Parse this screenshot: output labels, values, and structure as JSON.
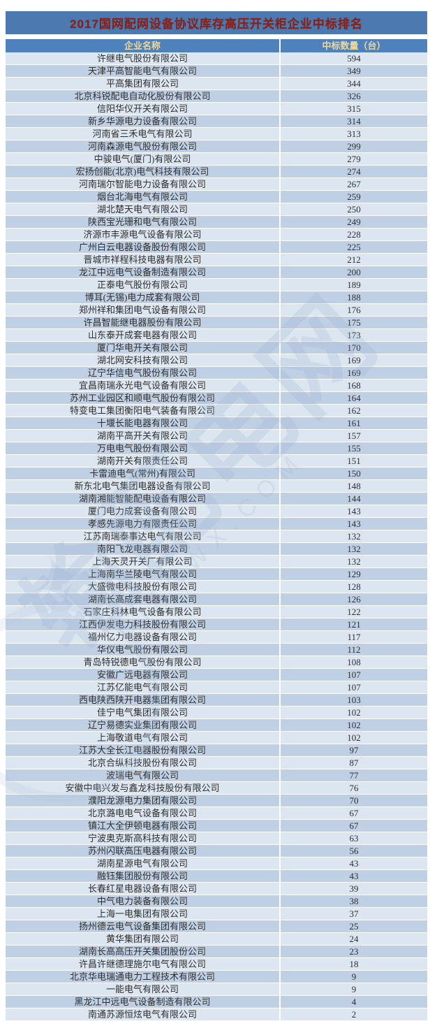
{
  "title": "2017国网配网设备协议库存高压开关柜企业中标排名",
  "colors": {
    "title_bg": "#4b79b0",
    "title_text": "#8e1f14",
    "header_bg": "#4f81bd",
    "header_text": "#eeda96",
    "row_light": "#dce6f1",
    "row_dark": "#bfd0e4"
  },
  "watermark": {
    "text_cn": "输配电网",
    "text_en": "DIANWX.COM",
    "star_icon": "✦"
  },
  "chart_data": {
    "type": "table",
    "title": "2017国网配网设备协议库存高压开关柜企业中标排名",
    "columns": [
      "企业名称",
      "中标数量（台）"
    ],
    "rows": [
      [
        "许继电气股份有限公司",
        "594"
      ],
      [
        "天津平高智能电气有限公司",
        "349"
      ],
      [
        "平高集团有限公司",
        "344"
      ],
      [
        "北京科锐配电自动化股份有限公司",
        "326"
      ],
      [
        "信阳华仪开关有限公司",
        "315"
      ],
      [
        "新乡华源电力设备有限公司",
        "314"
      ],
      [
        "河南省三禾电气有限公司",
        "313"
      ],
      [
        "河南森源电气股份有限公司",
        "299"
      ],
      [
        "中骏电气(厦门)有限公司",
        "279"
      ],
      [
        "宏扬创能(北京)电气科技有限公司",
        "274"
      ],
      [
        "河南瑞尔智能电力设备有限公司",
        "267"
      ],
      [
        "烟台北海电气有限公司",
        "259"
      ],
      [
        "湖北楚天电气有限公司",
        "250"
      ],
      [
        "陕西宝光珊和电气有限公司",
        "249"
      ],
      [
        "济源市丰源电气设备有限公司",
        "228"
      ],
      [
        "广州白云电器设备股份有限公司",
        "225"
      ],
      [
        "晋城市祥程科技电器有限公司",
        "212"
      ],
      [
        "龙江中远电气设备制造有限公司",
        "200"
      ],
      [
        "正泰电气股份有限公司",
        "189"
      ],
      [
        "博耳(无锡)电力成套有限公司",
        "188"
      ],
      [
        "郑州祥和集团电气设备有限公司",
        "176"
      ],
      [
        "许昌智能继电器股份有限公司",
        "175"
      ],
      [
        "山东泰开成套电器有限公司",
        "173"
      ],
      [
        "厦门华电开关有限公司",
        "170"
      ],
      [
        "湖北网安科技有限公司",
        "169"
      ],
      [
        "辽宁华信电气股份有限公司",
        "169"
      ],
      [
        "宜昌南瑞永光电气设备有限公司",
        "168"
      ],
      [
        "苏州工业园区和顺电气股份有限公司",
        "164"
      ],
      [
        "特变电工集团衡阳电气装备有限公司",
        "162"
      ],
      [
        "十堰长能电器有限公司",
        "161"
      ],
      [
        "湖南平高开关有限公司",
        "157"
      ],
      [
        "万电电气股份有限公司",
        "155"
      ],
      [
        "湖南开关有限责任公司",
        "151"
      ],
      [
        "卡雷迪电气(常州)有限公司",
        "150"
      ],
      [
        "新东北电气集团电器设备有限公司",
        "148"
      ],
      [
        "湖南湘能智能配电设备有限公司",
        "144"
      ],
      [
        "厦门电力成套设备有限公司",
        "143"
      ],
      [
        "孝感先源电力有限责任公司",
        "143"
      ],
      [
        "江苏南瑞泰事达电气有限公司",
        "132"
      ],
      [
        "南阳飞龙电器有限公司",
        "132"
      ],
      [
        "上海天灵开关厂有限公司",
        "132"
      ],
      [
        "上海南华兰陵电气有限公司",
        "129"
      ],
      [
        "大盛微电科技股份有限公司",
        "128"
      ],
      [
        "湖南长高成套电器有限公司",
        "126"
      ],
      [
        "石家庄科林电气设备有限公司",
        "122"
      ],
      [
        "江西伊发电力科技股份有限公司",
        "121"
      ],
      [
        "福州亿力电器设备有限公司",
        "117"
      ],
      [
        "华仪电气股份有限公司",
        "112"
      ],
      [
        "青岛特锐德电气股份有限公司",
        "108"
      ],
      [
        "安徽广远电器有限公司",
        "107"
      ],
      [
        "江苏亿能电气有限公司",
        "107"
      ],
      [
        "西电陕西陕开电器集团有限公司",
        "103"
      ],
      [
        "佳宁电气集团有限公司",
        "102"
      ],
      [
        "辽宁易德实业集团有限公司",
        "102"
      ],
      [
        "上海敬道电气有限公司",
        "102"
      ],
      [
        "江苏大全长江电器股份有限公司",
        "97"
      ],
      [
        "北京合纵科技股份有限公司",
        "87"
      ],
      [
        "波瑞电气有限公司",
        "77"
      ],
      [
        "安徽中电兴发与鑫龙科技股份有限公司",
        "76"
      ],
      [
        "濮阳龙源电力集团有限公司",
        "70"
      ],
      [
        "北京潞电电气设备有限公司",
        "67"
      ],
      [
        "镇江大全伊顿电器有限公司",
        "67"
      ],
      [
        "宁波奥克斯高科技有限公司",
        "63"
      ],
      [
        "苏州闪联高压电器有限公司",
        "56"
      ],
      [
        "湖南星源电气有限公司",
        "43"
      ],
      [
        "融钰集团股份有限公司",
        "43"
      ],
      [
        "长春红星电器设备有限公司",
        "39"
      ],
      [
        "中气电力装备有限公司",
        "38"
      ],
      [
        "上海一电集团有限公司",
        "37"
      ],
      [
        "扬州德云电气设备集团有限公司",
        "25"
      ],
      [
        "黄华集团有限公司",
        "24"
      ],
      [
        "湖南长高高压开关集团股份公司",
        "23"
      ],
      [
        "许昌许继德理施尔电气有限公司",
        "18"
      ],
      [
        "北京华电瑞通电力工程技术有限公司",
        "9"
      ],
      [
        "一能电气有限公司",
        "9"
      ],
      [
        "黑龙江中远电气设备制造有限公司",
        "4"
      ],
      [
        "南通苏源恒炫电气有限公司",
        "2"
      ]
    ]
  }
}
